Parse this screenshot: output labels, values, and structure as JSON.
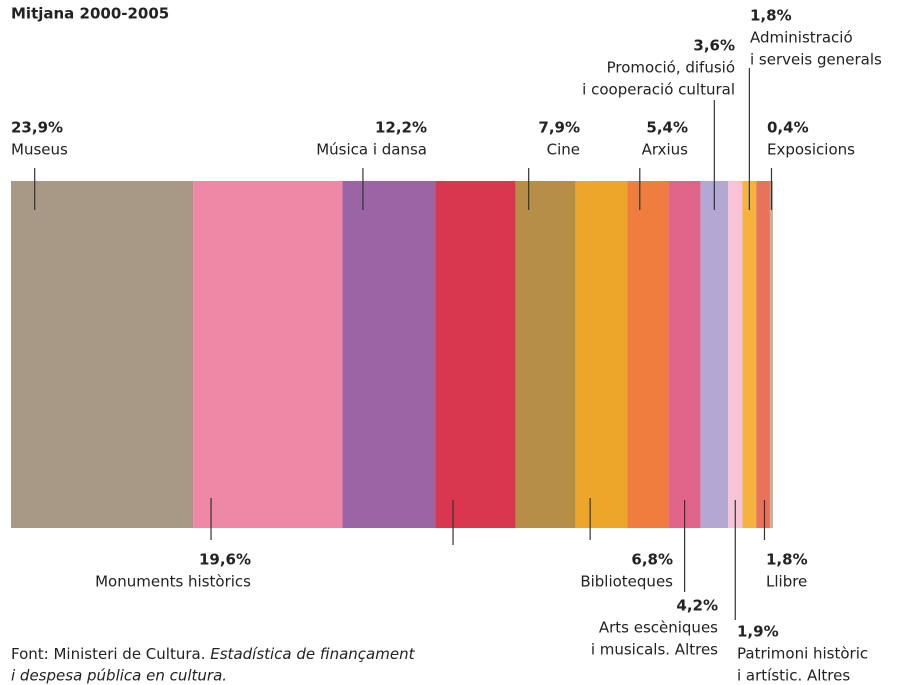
{
  "chart_data": {
    "type": "stacked-strip",
    "title": "Mitjana 2000-2005",
    "categories": [
      [
        "Museus"
      ],
      [
        "Monuments històrics"
      ],
      [
        "Música i dansa"
      ],
      null,
      [
        "Cine"
      ],
      [
        "Biblioteques"
      ],
      [
        "Arxius"
      ],
      [
        "Arts escèniques",
        "i musicals. Altres"
      ],
      [
        "Promoció, difusió",
        "i cooperació cultural"
      ],
      [
        "Patrimoni històric",
        "i artístic. Altres"
      ],
      [
        "Administració",
        "i serveis generals"
      ],
      [
        "Llibre"
      ],
      [
        "Exposicions"
      ]
    ],
    "values": [
      23.9,
      19.6,
      12.2,
      10.5,
      7.9,
      6.8,
      5.4,
      4.2,
      3.6,
      1.9,
      1.8,
      1.8,
      0.4
    ],
    "value_labels": [
      "23,9%",
      "19,6%",
      "12,2%",
      null,
      "7,9%",
      "6,8%",
      "5,4%",
      "4,2%",
      "3,6%",
      "1,9%",
      "1,8%",
      "1,8%",
      "0,4%"
    ],
    "colors": [
      "#a89886",
      "#ef87a6",
      "#9b64a5",
      "#d9364f",
      "#b78e47",
      "#eda52a",
      "#ee7d3e",
      "#e06489",
      "#b3a8d3",
      "#f6c4d5",
      "#f5b23d",
      "#e8735c",
      "#c8b09a"
    ],
    "source": [
      "Font: Ministeri de Cultura.",
      "Estadística de finançament",
      "i despesa pública en cultura."
    ]
  }
}
